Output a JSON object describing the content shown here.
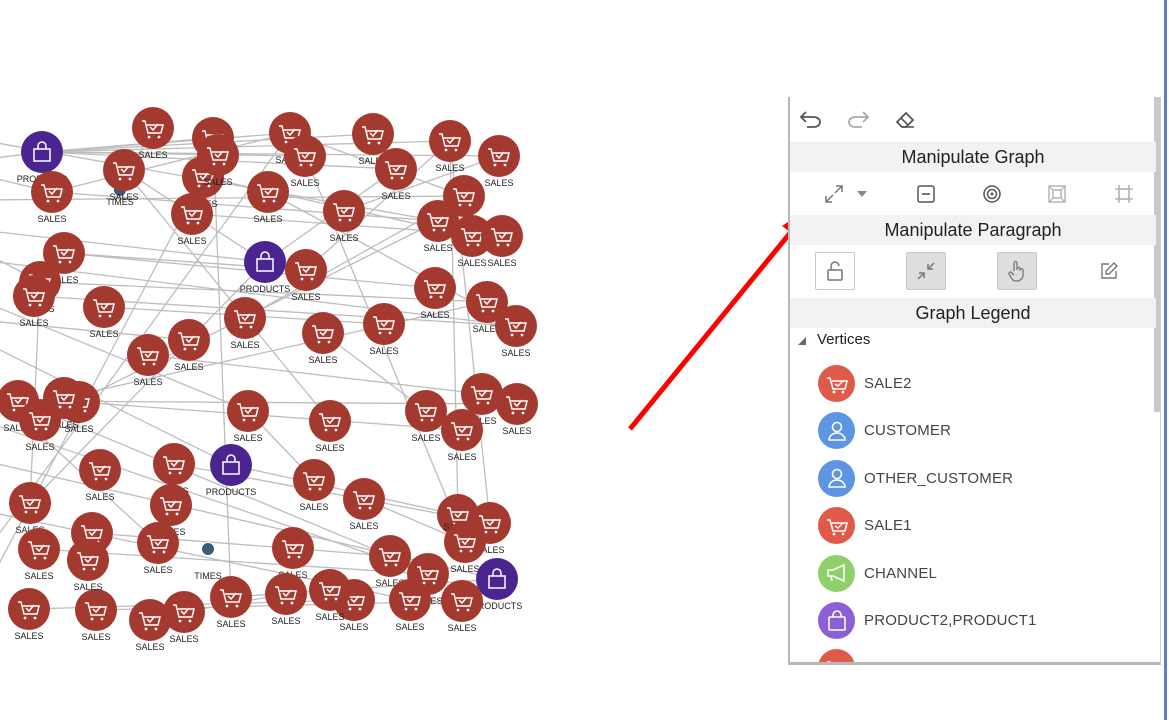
{
  "panel": {
    "toolbar": {
      "undo_icon": "undo-icon",
      "redo_icon": "redo-icon",
      "eraser_icon": "eraser-icon"
    },
    "manipulate_graph": {
      "title": "Manipulate Graph",
      "icons": [
        "expand-icon",
        "dropdown-caret-icon",
        "collapse-minus-icon",
        "focus-target-icon",
        "group-frame-icon",
        "ungroup-frame-icon"
      ]
    },
    "manipulate_paragraph": {
      "title": "Manipulate Paragraph",
      "icons": [
        "unlock-icon",
        "shrink-icon",
        "hand-pointer-icon",
        "edit-pencil-icon"
      ]
    },
    "legend": {
      "title": "Graph Legend",
      "vertices_label": "Vertices",
      "items": [
        {
          "label": "SALE2",
          "color": "#e05a4a",
          "icon": "cart-icon"
        },
        {
          "label": "CUSTOMER",
          "color": "#5e94e4",
          "icon": "person-icon"
        },
        {
          "label": "OTHER_CUSTOMER",
          "color": "#5e94e4",
          "icon": "person-icon"
        },
        {
          "label": "SALE1",
          "color": "#e05a4a",
          "icon": "cart-icon"
        },
        {
          "label": "CHANNEL",
          "color": "#8fd06a",
          "icon": "megaphone-icon"
        },
        {
          "label": "PRODUCT2,PRODUCT1",
          "color": "#8b5fd6",
          "icon": "bag-icon"
        },
        {
          "label": "",
          "color": "#e05a4a",
          "icon": "cart-icon"
        }
      ]
    }
  },
  "graph": {
    "colors": {
      "sales": "#a3392f",
      "products": "#4a2590",
      "times": "#3e5a78",
      "edge": "#bdbdbd",
      "arrow": "#ff0000"
    },
    "nodes": [
      {
        "label": "PRODUCTS",
        "kind": "products"
      },
      {
        "label": "SALES",
        "kind": "sales"
      },
      {
        "label": "SALES",
        "kind": "sales"
      },
      {
        "label": "SALES",
        "kind": "sales"
      },
      {
        "label": "SALES",
        "kind": "sales"
      },
      {
        "label": "SALES",
        "kind": "sales"
      },
      {
        "label": "SALES",
        "kind": "sales"
      },
      {
        "label": "SALES",
        "kind": "sales"
      },
      {
        "label": "TIMES",
        "kind": "times"
      },
      {
        "label": "SALES",
        "kind": "sales"
      },
      {
        "label": "SALES",
        "kind": "sales"
      },
      {
        "label": "SALES",
        "kind": "sales"
      },
      {
        "label": "SALES",
        "kind": "sales"
      },
      {
        "label": "SALES",
        "kind": "sales"
      },
      {
        "label": "SALES",
        "kind": "sales"
      },
      {
        "label": "SALES",
        "kind": "sales"
      },
      {
        "label": "SALES",
        "kind": "sales"
      },
      {
        "label": "SALES",
        "kind": "sales"
      },
      {
        "label": "SALES",
        "kind": "sales"
      },
      {
        "label": "SALES",
        "kind": "sales"
      },
      {
        "label": "SALES",
        "kind": "sales"
      },
      {
        "label": "PRODUCTS",
        "kind": "products"
      },
      {
        "label": "SALES",
        "kind": "sales"
      },
      {
        "label": "SALES",
        "kind": "sales"
      },
      {
        "label": "SALES",
        "kind": "sales"
      },
      {
        "label": "SALES",
        "kind": "sales"
      },
      {
        "label": "SALES",
        "kind": "sales"
      },
      {
        "label": "SALES",
        "kind": "sales"
      },
      {
        "label": "SALES",
        "kind": "sales"
      },
      {
        "label": "SALES",
        "kind": "sales"
      },
      {
        "label": "SALES",
        "kind": "sales"
      },
      {
        "label": "SALES",
        "kind": "sales"
      },
      {
        "label": "SALES",
        "kind": "sales"
      },
      {
        "label": "SALES",
        "kind": "sales"
      },
      {
        "label": "SALES",
        "kind": "sales"
      },
      {
        "label": "SALES",
        "kind": "sales"
      },
      {
        "label": "SALES",
        "kind": "sales"
      },
      {
        "label": "SALES",
        "kind": "sales"
      },
      {
        "label": "SALES",
        "kind": "sales"
      },
      {
        "label": "SALES",
        "kind": "sales"
      },
      {
        "label": "SALES",
        "kind": "sales"
      },
      {
        "label": "SALES",
        "kind": "sales"
      },
      {
        "label": "PRODUCTS",
        "kind": "products"
      },
      {
        "label": "SALES",
        "kind": "sales"
      },
      {
        "label": "SALES",
        "kind": "sales"
      },
      {
        "label": "SALES",
        "kind": "sales"
      },
      {
        "label": "SALES",
        "kind": "sales"
      },
      {
        "label": "SALES",
        "kind": "sales"
      },
      {
        "label": "SALES",
        "kind": "sales"
      },
      {
        "label": "SALES",
        "kind": "sales"
      },
      {
        "label": "TIMES",
        "kind": "times"
      },
      {
        "label": "SALES",
        "kind": "sales"
      },
      {
        "label": "SALES",
        "kind": "sales"
      },
      {
        "label": "SALES",
        "kind": "sales"
      },
      {
        "label": "SALES",
        "kind": "sales"
      },
      {
        "label": "SALES",
        "kind": "sales"
      },
      {
        "label": "SALES",
        "kind": "sales"
      },
      {
        "label": "SALES",
        "kind": "sales"
      },
      {
        "label": "SALES",
        "kind": "sales"
      },
      {
        "label": "SALES",
        "kind": "sales"
      },
      {
        "label": "SALES",
        "kind": "sales"
      },
      {
        "label": "SALES",
        "kind": "sales"
      },
      {
        "label": "SALES",
        "kind": "sales"
      },
      {
        "label": "PRODUCTS",
        "kind": "products"
      },
      {
        "label": "SALES",
        "kind": "sales"
      },
      {
        "label": "SALES",
        "kind": "sales"
      },
      {
        "label": "SALES",
        "kind": "sales"
      },
      {
        "label": "SALES",
        "kind": "sales"
      },
      {
        "label": "SALES",
        "kind": "sales"
      },
      {
        "label": "SALES",
        "kind": "sales"
      },
      {
        "label": "SALES",
        "kind": "sales"
      },
      {
        "label": "SALES",
        "kind": "sales"
      },
      {
        "label": "SALES",
        "kind": "sales"
      },
      {
        "label": "SALES",
        "kind": "sales"
      }
    ]
  }
}
